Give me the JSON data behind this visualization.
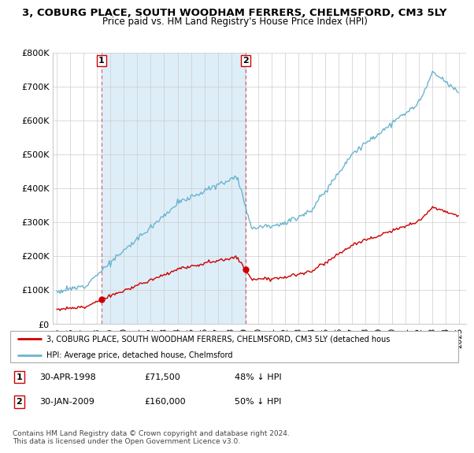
{
  "title": "3, COBURG PLACE, SOUTH WOODHAM FERRERS, CHELMSFORD, CM3 5LY",
  "subtitle": "Price paid vs. HM Land Registry's House Price Index (HPI)",
  "ylim": [
    0,
    800000
  ],
  "yticks": [
    0,
    100000,
    200000,
    300000,
    400000,
    500000,
    600000,
    700000,
    800000
  ],
  "ytick_labels": [
    "£0",
    "£100K",
    "£200K",
    "£300K",
    "£400K",
    "£500K",
    "£600K",
    "£700K",
    "£800K"
  ],
  "sale_year_1": 1998.33,
  "sale_year_2": 2009.08,
  "sale_price_1": 71500,
  "sale_price_2": 160000,
  "sale_labels": [
    "1",
    "2"
  ],
  "sale_info_1": "30-APR-1998",
  "sale_info_1_price": "£71,500",
  "sale_info_1_hpi": "48% ↓ HPI",
  "sale_info_2": "30-JAN-2009",
  "sale_info_2_price": "£160,000",
  "sale_info_2_hpi": "50% ↓ HPI",
  "legend_line1": "3, COBURG PLACE, SOUTH WOODHAM FERRERS, CHELMSFORD, CM3 5LY (detached hous",
  "legend_line2": "HPI: Average price, detached house, Chelmsford",
  "footer": "Contains HM Land Registry data © Crown copyright and database right 2024.\nThis data is licensed under the Open Government Licence v3.0.",
  "line_color_price": "#cc0000",
  "line_color_hpi": "#6ab4d0",
  "shade_color": "#deeef8",
  "grid_color": "#cccccc",
  "background_color": "#ffffff"
}
